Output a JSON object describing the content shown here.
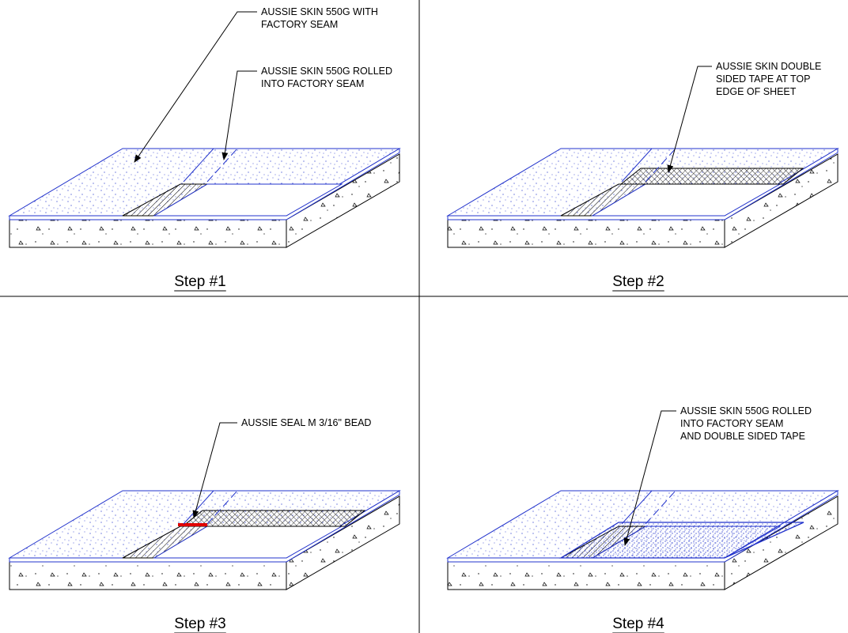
{
  "panels": [
    {
      "callouts": [
        {
          "lines": [
            "AUSSIE SKIN 550G WITH",
            "FACTORY SEAM"
          ]
        },
        {
          "lines": [
            "AUSSIE SKIN 550G ROLLED",
            "INTO FACTORY SEAM"
          ]
        }
      ],
      "step": "Step #1"
    },
    {
      "callouts": [
        {
          "lines": [
            "AUSSIE SKIN DOUBLE",
            "SIDED TAPE AT TOP",
            "EDGE OF SHEET"
          ]
        }
      ],
      "step": "Step #2"
    },
    {
      "callouts": [
        {
          "lines": [
            "AUSSIE SEAL M 3/16\" BEAD"
          ]
        }
      ],
      "step": "Step #3"
    },
    {
      "callouts": [
        {
          "lines": [
            "AUSSIE SKIN 550G ROLLED",
            "INTO FACTORY SEAM",
            "AND DOUBLE SIDED TAPE"
          ]
        }
      ],
      "step": "Step #4"
    }
  ]
}
